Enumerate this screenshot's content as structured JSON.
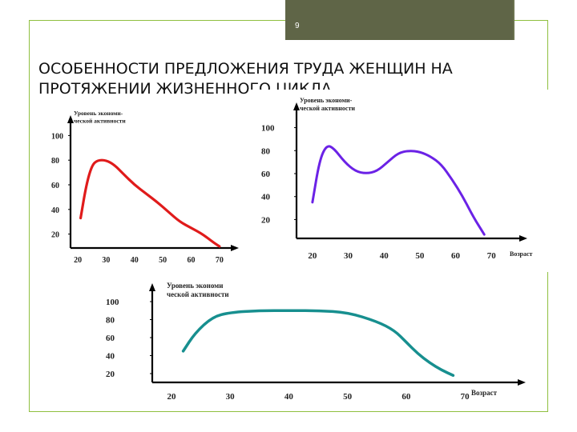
{
  "slide": {
    "page_number": "9",
    "title": "ОСОБЕННОСТИ ПРЕДЛОЖЕНИЯ ТРУДА ЖЕНЩИН НА ПРОТЯЖЕНИИ ЖИЗНЕННОГО ЦИКЛА",
    "colors": {
      "frame_border": "#8fbf3f",
      "number_box": "#5f6547"
    }
  },
  "chart_data": [
    {
      "type": "line",
      "ylabel": "Уровень экономи-ческой активности",
      "xlabel": "",
      "x_ticks": [
        "20",
        "30",
        "40",
        "50",
        "60",
        "70"
      ],
      "y_ticks": [
        "20",
        "40",
        "60",
        "80",
        "100"
      ],
      "xlim": [
        18,
        74
      ],
      "ylim": [
        10,
        110
      ],
      "color": "#e01b1b",
      "series": [
        {
          "x": [
            21,
            23,
            25,
            27,
            30,
            33,
            36,
            40,
            44,
            48,
            52,
            56,
            60,
            64,
            68,
            70
          ],
          "y": [
            33,
            60,
            76,
            80,
            80,
            76,
            69,
            60,
            53,
            46,
            38,
            30,
            25,
            20,
            13,
            10
          ]
        }
      ]
    },
    {
      "type": "line",
      "ylabel": "Уровень экономи-ческой активности",
      "xlabel": "Возраст",
      "x_ticks": [
        "20",
        "30",
        "40",
        "50",
        "60",
        "70"
      ],
      "y_ticks": [
        "20",
        "40",
        "60",
        "80",
        "100"
      ],
      "xlim": [
        16,
        76
      ],
      "ylim": [
        5,
        115
      ],
      "color": "#6b22e6",
      "series": [
        {
          "x": [
            20,
            22,
            24,
            26,
            29,
            32,
            35,
            38,
            41,
            44,
            47,
            50,
            53,
            56,
            59,
            62,
            65,
            68
          ],
          "y": [
            35,
            72,
            85,
            82,
            70,
            62,
            60,
            62,
            70,
            78,
            80,
            79,
            75,
            68,
            55,
            40,
            22,
            7
          ]
        }
      ]
    },
    {
      "type": "line",
      "ylabel": "Уровень экономи ческой активности",
      "xlabel": "Возраст",
      "x_ticks": [
        "20",
        "30",
        "40",
        "50",
        "60",
        "70"
      ],
      "y_ticks": [
        "20",
        "40",
        "60",
        "80",
        "100"
      ],
      "xlim": [
        17,
        76
      ],
      "ylim": [
        12,
        108
      ],
      "color": "#178f8f",
      "series": [
        {
          "x": [
            22,
            24,
            27,
            30,
            35,
            40,
            45,
            50,
            55,
            58,
            60,
            62,
            64,
            66,
            68
          ],
          "y": [
            45,
            65,
            83,
            88,
            90,
            90,
            90,
            88,
            78,
            68,
            55,
            42,
            32,
            24,
            18
          ]
        }
      ]
    }
  ]
}
